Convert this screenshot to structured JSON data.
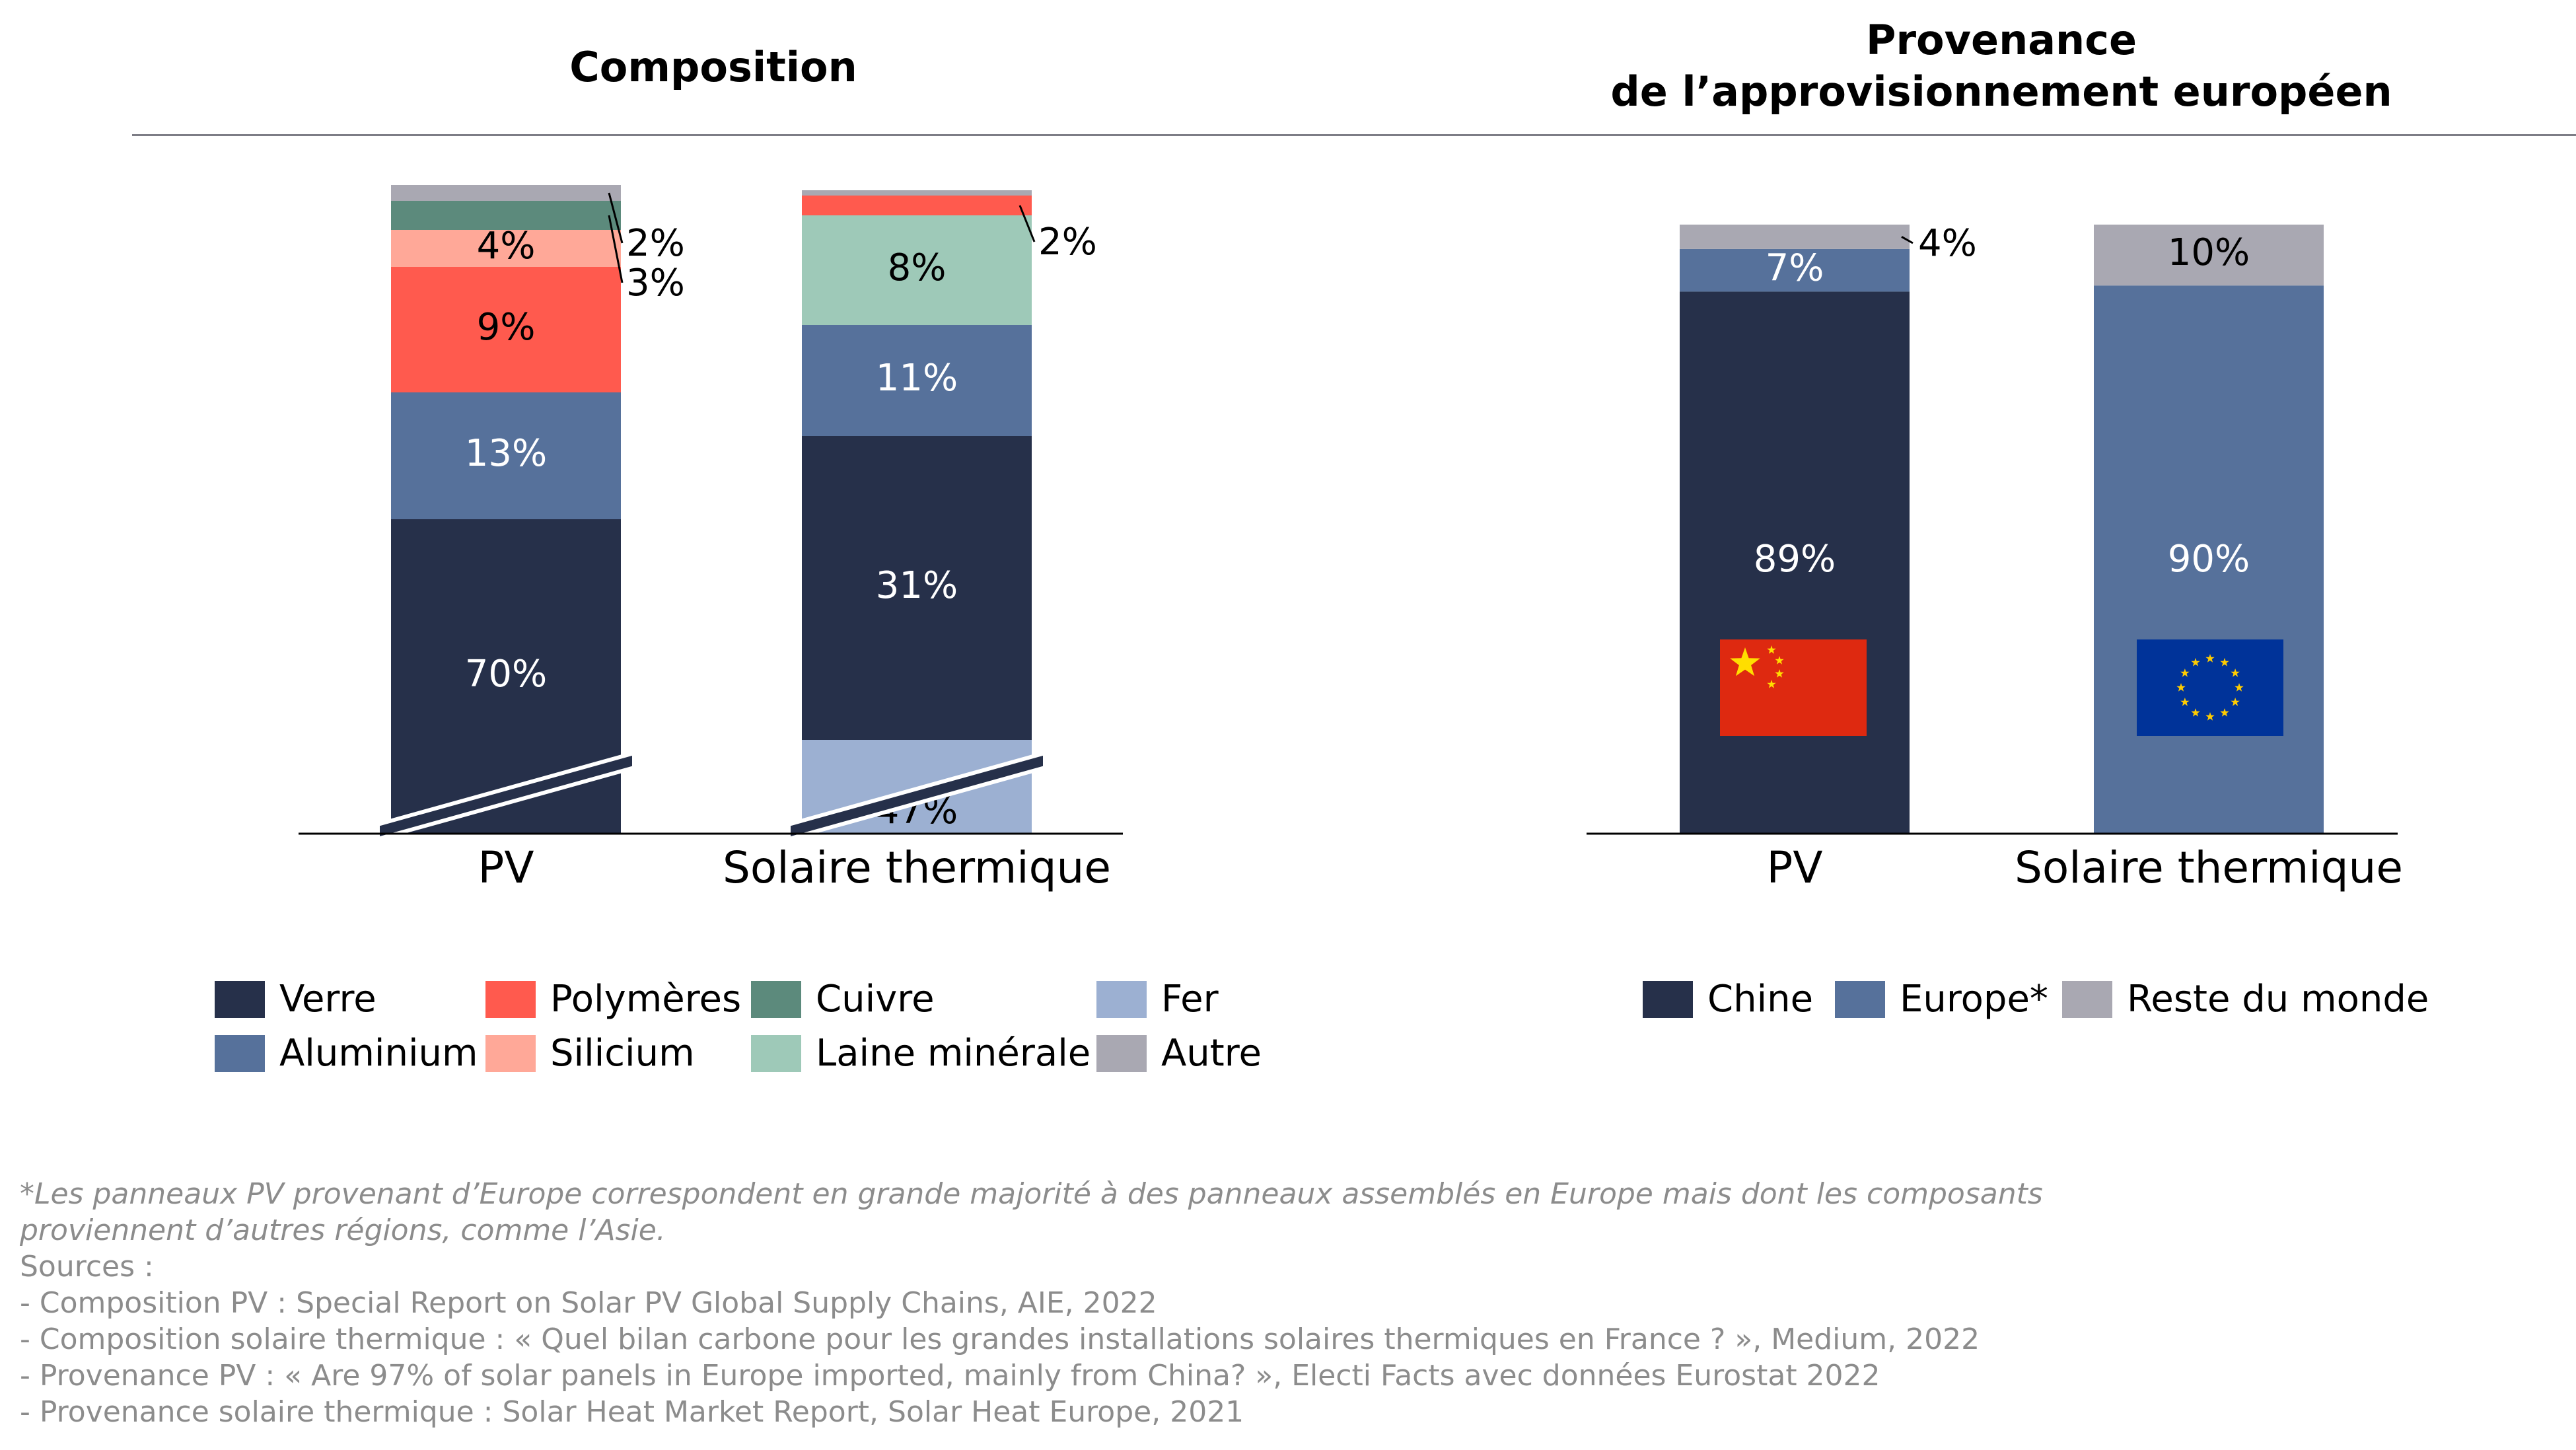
{
  "titles": {
    "left": "Composition",
    "right_line1": "Provenance",
    "right_line2": "de l’approvisionnement européen"
  },
  "colors": {
    "verre": "#26304a",
    "aluminium": "#56719b",
    "polymeres": "#ff5a4e",
    "silicium": "#ffa898",
    "cuivre": "#5c8a7c",
    "laine": "#9ec9b8",
    "fer": "#9cb0d2",
    "autre": "#a9a8b2",
    "chine": "#26304a",
    "europe": "#56719b",
    "reste": "#a9a8b2"
  },
  "chart_data": [
    {
      "type": "bar",
      "stacked": true,
      "title": "Composition",
      "categories": [
        "PV",
        "Solaire thermique"
      ],
      "axis_break": true,
      "series": [
        {
          "name": "Fer",
          "color_key": "fer",
          "values": [
            0,
            47
          ],
          "labels": [
            "",
            "47%"
          ]
        },
        {
          "name": "Verre",
          "color_key": "verre",
          "values": [
            70,
            31
          ],
          "labels": [
            "70%",
            "31%"
          ]
        },
        {
          "name": "Aluminium",
          "color_key": "aluminium",
          "values": [
            13,
            11
          ],
          "labels": [
            "13%",
            "11%"
          ]
        },
        {
          "name": "Polymères",
          "color_key": "polymeres",
          "values": [
            9,
            2
          ],
          "labels": [
            "9%",
            "2%"
          ]
        },
        {
          "name": "Silicium",
          "color_key": "silicium",
          "values": [
            4,
            0
          ],
          "labels": [
            "4%",
            ""
          ]
        },
        {
          "name": "Cuivre",
          "color_key": "cuivre",
          "values": [
            3,
            0
          ],
          "labels": [
            "3%",
            ""
          ]
        },
        {
          "name": "Laine minérale",
          "color_key": "laine",
          "values": [
            0,
            8
          ],
          "labels": [
            "",
            "8%"
          ]
        },
        {
          "name": "Autre",
          "color_key": "autre",
          "values": [
            2,
            1
          ],
          "labels": [
            "2%",
            ""
          ]
        }
      ],
      "legend": {
        "row1": [
          "Verre",
          "Polymères",
          "Cuivre",
          "Fer"
        ],
        "row2": [
          "Aluminium",
          "Silicium",
          "Laine minérale",
          "Autre"
        ]
      }
    },
    {
      "type": "bar",
      "stacked": true,
      "title": "Provenance de l’approvisionnement européen",
      "categories": [
        "PV",
        "Solaire thermique"
      ],
      "series": [
        {
          "name": "Chine",
          "color_key": "chine",
          "values": [
            89,
            0
          ],
          "labels": [
            "89%",
            ""
          ]
        },
        {
          "name": "Europe*",
          "color_key": "europe",
          "values": [
            7,
            90
          ],
          "labels": [
            "7%",
            "90%"
          ]
        },
        {
          "name": "Reste du monde",
          "color_key": "reste",
          "values": [
            4,
            10
          ],
          "labels": [
            "4%",
            "10%"
          ]
        }
      ],
      "flags": [
        "china-flag",
        "eu-flag"
      ],
      "legend": {
        "row1": [
          "Chine",
          "Europe*",
          "Reste du monde"
        ]
      }
    }
  ],
  "notes": {
    "line1": "*Les panneaux PV provenant d’Europe correspondent en grande majorité à des panneaux assemblés en Europe mais dont les composants",
    "line2": "proviennent d’autres régions, comme l’Asie.",
    "line3": "Sources :",
    "line4": "- Composition PV : Special Report on Solar PV Global Supply Chains, AIE, 2022",
    "line5": "- Composition solaire thermique : « Quel bilan carbone pour les grandes installations solaires thermiques en France ? », Medium, 2022",
    "line6": "- Provenance PV :  «  Are 97% of solar panels in Europe imported, mainly from China? », Electi Facts avec données Eurostat 2022",
    "line7": "- Provenance solaire thermique : Solar Heat Market Report, Solar Heat Europe, 2021"
  }
}
